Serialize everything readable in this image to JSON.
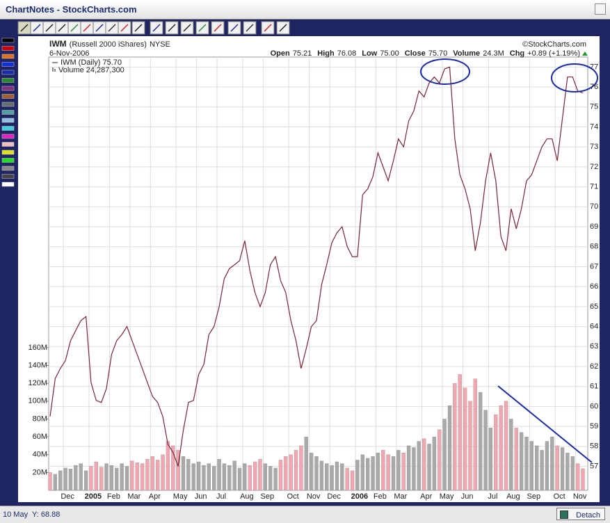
{
  "window": {
    "title": "ChartNotes - StockCharts.com"
  },
  "status": "10 May  Y: 68.88",
  "detach": "Detach",
  "chart_data": {
    "type": "line",
    "symbol": "IWM",
    "description": "(Russell 2000 iShares)",
    "exchange": "NYSE",
    "date": "6-Nov-2006",
    "copyright": "©StockCharts.com",
    "quote": [
      {
        "label": "Open",
        "value": "75.21"
      },
      {
        "label": "High",
        "value": "76.08"
      },
      {
        "label": "Low",
        "value": "75.00"
      },
      {
        "label": "Close",
        "value": "75.70"
      },
      {
        "label": "Volume",
        "value": "24.3M"
      },
      {
        "label": "Chg",
        "value": "+0.89 (+1.19%)"
      }
    ],
    "categories": [
      null,
      null,
      null,
      "Dec",
      null,
      null,
      null,
      null,
      "2005",
      null,
      null,
      null,
      "Feb",
      null,
      null,
      null,
      "Mar",
      null,
      null,
      null,
      "Apr",
      null,
      null,
      null,
      null,
      "May",
      null,
      null,
      null,
      "Jun",
      null,
      null,
      null,
      "Jul",
      null,
      null,
      null,
      null,
      "Aug",
      null,
      null,
      null,
      "Sep",
      null,
      null,
      null,
      null,
      "Oct",
      null,
      null,
      null,
      "Nov",
      null,
      null,
      null,
      "Dec",
      null,
      null,
      null,
      null,
      "2006",
      null,
      null,
      null,
      "Feb",
      null,
      null,
      null,
      "Mar",
      null,
      null,
      null,
      null,
      "Apr",
      null,
      null,
      null,
      "May",
      null,
      null,
      null,
      "Jun",
      null,
      null,
      null,
      null,
      "Jul",
      null,
      null,
      null,
      "Aug",
      null,
      null,
      null,
      "Sep",
      null,
      null,
      null,
      null,
      "Oct",
      null,
      null,
      null,
      "Nov",
      null
    ],
    "series": [
      {
        "name": "IWM (Daily) 75.70",
        "type": "line",
        "color": "#7a2335",
        "values": [
          59.5,
          61.4,
          61.9,
          62.3,
          63.3,
          63.8,
          64.3,
          64.5,
          61.2,
          60.3,
          60.2,
          60.9,
          62.6,
          63.3,
          63.6,
          64.0,
          63.3,
          62.6,
          61.9,
          61.2,
          60.5,
          60.2,
          59.5,
          58.1,
          57.7,
          57.0,
          58.8,
          60.2,
          60.3,
          61.6,
          62.1,
          63.6,
          64.0,
          65.0,
          66.4,
          66.9,
          67.1,
          67.3,
          68.3,
          66.8,
          65.7,
          65.0,
          65.7,
          67.1,
          67.5,
          66.3,
          65.7,
          64.3,
          63.3,
          61.9,
          62.9,
          64.0,
          64.3,
          66.1,
          67.1,
          68.2,
          68.7,
          69.0,
          68.0,
          67.5,
          67.5,
          70.6,
          70.9,
          71.5,
          72.7,
          72.0,
          71.3,
          72.3,
          73.4,
          73.0,
          74.3,
          74.8,
          75.8,
          75.5,
          76.2,
          76.5,
          76.2,
          76.9,
          77.0,
          73.4,
          71.6,
          70.9,
          69.9,
          67.8,
          69.2,
          71.3,
          72.7,
          71.3,
          68.5,
          67.8,
          69.9,
          68.9,
          69.9,
          71.3,
          71.6,
          72.3,
          73.0,
          73.4,
          73.4,
          72.3,
          74.4,
          76.5,
          76.5,
          75.8,
          75.7
        ]
      },
      {
        "name": "Volume 24,287,300",
        "type": "bar",
        "axis": "y2",
        "up_color": "#a9a9a9",
        "down_color": "#f2a7b0",
        "values": [
          20,
          18,
          22,
          25,
          24,
          28,
          30,
          22,
          27,
          32,
          26,
          30,
          28,
          25,
          30,
          27,
          33,
          31,
          30,
          35,
          38,
          34,
          40,
          55,
          50,
          45,
          38,
          35,
          30,
          32,
          28,
          30,
          27,
          35,
          30,
          28,
          33,
          25,
          30,
          28,
          32,
          35,
          30,
          27,
          25,
          34,
          38,
          40,
          45,
          50,
          60,
          42,
          38,
          33,
          30,
          28,
          32,
          30,
          25,
          22,
          34,
          40,
          36,
          38,
          42,
          45,
          40,
          38,
          45,
          42,
          50,
          48,
          55,
          58,
          52,
          60,
          68,
          80,
          95,
          120,
          130,
          115,
          100,
          125,
          110,
          90,
          70,
          85,
          95,
          100,
          80,
          70,
          65,
          60,
          55,
          50,
          45,
          55,
          60,
          50,
          48,
          42,
          38,
          30,
          24.3
        ]
      }
    ],
    "ylim": [
      55.8,
      77.5
    ],
    "yticks": [
      57,
      58,
      59,
      60,
      61,
      62,
      63,
      64,
      65,
      66,
      67,
      68,
      69,
      70,
      71,
      72,
      73,
      74,
      75,
      76,
      77
    ],
    "y2lim": [
      0,
      486
    ],
    "y2ticks": [
      {
        "value": 20,
        "label": "20M"
      },
      {
        "value": 40,
        "label": "40M"
      },
      {
        "value": 60,
        "label": "60M"
      },
      {
        "value": 80,
        "label": "80M"
      },
      {
        "value": 100,
        "label": "100M"
      },
      {
        "value": 120,
        "label": "120M"
      },
      {
        "value": 140,
        "label": "140M"
      },
      {
        "value": 160,
        "label": "160M"
      }
    ],
    "grid": true
  }
}
